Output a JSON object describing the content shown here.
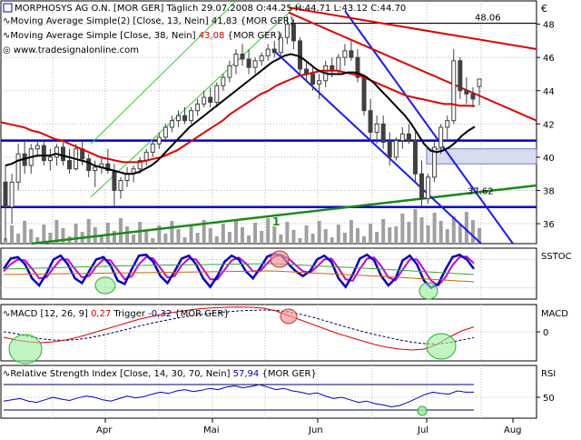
{
  "header": {
    "instrument": "MORPHOSYS AG O.N. [MOR GER] Täglich",
    "date": "29.07.2008",
    "ohlc": "O:44.25 H:44.71 L:43.12 C:44.70",
    "ma1": "Moving Average Simple(2) [Close, 13, Nein] 41,83 {MOR GER}",
    "ma2_prefix": "Moving Average Simple [Close, 38, Nein]",
    "ma2_value": "43,08",
    "ma2_suffix": "{MOR GER}",
    "website": "www.tradesignalonline.com",
    "currency": "€"
  },
  "colors": {
    "candle": "#404040",
    "ma13": "#000000",
    "ma38": "#e00000",
    "support": "#0000cc",
    "channel_down": "#1a1aff",
    "trend_up": "#1a8a1a",
    "channel_up": "#33cc33",
    "resistance_red": "#e00000",
    "volume": "#a0a0a0",
    "stoch_k": "#0000cc",
    "stoch_d": "#cc00cc",
    "macd": "#e00000",
    "trigger": "#000060",
    "rsi": "#0000cc",
    "ellipse_green": "#99ee99",
    "ellipse_red": "#ee9999",
    "grid": "#b8b8b8"
  },
  "chart_data": [
    {
      "type": "candlestick",
      "panel": "price",
      "y_ticks": [
        "36",
        "38",
        "40",
        "42",
        "44",
        "46",
        "48"
      ],
      "ylim": [
        34.8,
        49.4
      ],
      "x_month_labels": [
        "Apr",
        "Mai",
        "Jun",
        "Jul",
        "Aug"
      ],
      "annotations": [
        "48.06",
        "37.62",
        "1"
      ],
      "lines": {
        "support_41": 41.0,
        "support_37": 37.0,
        "resistance_48": 48.06
      },
      "ohlc": [
        [
          38.5,
          39.5,
          35.0,
          37.0
        ],
        [
          37.0,
          39.0,
          36.0,
          38.5
        ],
        [
          38.5,
          40.8,
          38.0,
          40.2
        ],
        [
          40.2,
          41.0,
          39.0,
          39.5
        ],
        [
          39.5,
          40.8,
          39.0,
          40.5
        ],
        [
          40.5,
          41.0,
          40.0,
          40.7
        ],
        [
          40.7,
          41.0,
          39.5,
          39.8
        ],
        [
          39.8,
          40.5,
          39.2,
          40.0
        ],
        [
          40.0,
          40.8,
          39.5,
          40.6
        ],
        [
          40.6,
          40.9,
          39.5,
          39.8
        ],
        [
          39.8,
          40.5,
          39.0,
          39.3
        ],
        [
          39.3,
          40.8,
          39.2,
          40.5
        ],
        [
          40.5,
          41.0,
          39.5,
          39.9
        ],
        [
          39.9,
          40.2,
          38.8,
          39.2
        ],
        [
          39.2,
          39.8,
          38.2,
          39.4
        ],
        [
          39.4,
          40.0,
          39.0,
          39.6
        ],
        [
          39.6,
          40.5,
          39.0,
          39.2
        ],
        [
          39.2,
          39.6,
          37.0,
          38.0
        ],
        [
          38.0,
          38.8,
          37.5,
          38.6
        ],
        [
          38.6,
          39.4,
          38.2,
          39.0
        ],
        [
          39.0,
          39.5,
          38.5,
          39.3
        ],
        [
          39.3,
          40.0,
          39.0,
          39.8
        ],
        [
          39.8,
          40.5,
          39.5,
          40.3
        ],
        [
          40.3,
          41.0,
          40.0,
          40.8
        ],
        [
          40.8,
          41.5,
          40.5,
          41.2
        ],
        [
          41.2,
          42.0,
          40.9,
          41.8
        ],
        [
          41.8,
          42.5,
          41.5,
          42.2
        ],
        [
          42.2,
          42.8,
          41.8,
          42.5
        ],
        [
          42.5,
          43.0,
          42.0,
          42.2
        ],
        [
          42.2,
          43.0,
          42.0,
          42.8
        ],
        [
          42.8,
          43.5,
          42.5,
          43.2
        ],
        [
          43.2,
          44.0,
          43.0,
          43.6
        ],
        [
          43.6,
          44.2,
          43.0,
          43.3
        ],
        [
          43.3,
          44.5,
          43.0,
          44.3
        ],
        [
          44.3,
          45.0,
          44.0,
          44.8
        ],
        [
          44.8,
          45.8,
          44.5,
          45.5
        ],
        [
          45.5,
          46.5,
          45.0,
          46.2
        ],
        [
          46.2,
          46.8,
          45.5,
          45.9
        ],
        [
          45.9,
          46.5,
          45.0,
          45.4
        ],
        [
          45.4,
          46.0,
          45.0,
          45.8
        ],
        [
          45.8,
          46.3,
          45.5,
          46.1
        ],
        [
          46.1,
          46.8,
          45.8,
          46.5
        ],
        [
          46.5,
          47.0,
          46.0,
          46.3
        ],
        [
          46.3,
          47.5,
          46.0,
          47.2
        ],
        [
          47.2,
          48.5,
          46.8,
          48.0
        ],
        [
          48.0,
          48.3,
          46.5,
          47.0
        ],
        [
          47.0,
          47.2,
          45.0,
          45.3
        ],
        [
          45.3,
          45.8,
          44.5,
          45.0
        ],
        [
          45.0,
          45.5,
          44.0,
          44.4
        ],
        [
          44.4,
          45.0,
          43.5,
          44.6
        ],
        [
          44.6,
          45.8,
          44.2,
          45.5
        ],
        [
          45.5,
          46.0,
          44.8,
          45.2
        ],
        [
          45.2,
          46.2,
          45.0,
          46.0
        ],
        [
          46.0,
          46.8,
          45.5,
          46.4
        ],
        [
          46.4,
          47.0,
          45.8,
          46.0
        ],
        [
          46.0,
          46.5,
          44.5,
          44.8
        ],
        [
          44.8,
          45.0,
          42.5,
          42.8
        ],
        [
          42.8,
          43.5,
          41.0,
          41.5
        ],
        [
          41.5,
          42.5,
          40.8,
          42.0
        ],
        [
          42.0,
          42.5,
          40.5,
          40.9
        ],
        [
          40.9,
          41.5,
          39.5,
          40.0
        ],
        [
          40.0,
          41.2,
          39.8,
          41.0
        ],
        [
          41.0,
          41.8,
          40.5,
          41.4
        ],
        [
          41.4,
          42.0,
          40.8,
          41.0
        ],
        [
          41.0,
          41.5,
          38.5,
          39.0
        ],
        [
          39.0,
          39.8,
          37.0,
          37.5
        ],
        [
          37.5,
          39.0,
          37.2,
          38.8
        ],
        [
          38.8,
          41.0,
          38.5,
          40.6
        ],
        [
          40.6,
          42.0,
          40.2,
          41.8
        ],
        [
          41.8,
          42.5,
          41.0,
          42.2
        ],
        [
          42.2,
          46.5,
          42.0,
          45.8
        ],
        [
          45.8,
          46.0,
          43.5,
          44.0
        ],
        [
          44.0,
          44.8,
          43.2,
          43.8
        ],
        [
          43.8,
          44.2,
          43.0,
          43.5
        ],
        [
          44.25,
          44.71,
          43.12,
          44.7
        ]
      ],
      "ma13": [
        39.5,
        39.6,
        39.8,
        39.9,
        40.0,
        40.1,
        40.1,
        40.1,
        40.2,
        40.1,
        40.0,
        39.9,
        39.8,
        39.7,
        39.5,
        39.4,
        39.3,
        39.2,
        39.1,
        39.0,
        39.0,
        39.1,
        39.3,
        39.5,
        39.8,
        40.2,
        40.6,
        41.0,
        41.4,
        41.8,
        42.1,
        42.4,
        42.7,
        43.0,
        43.3,
        43.6,
        43.9,
        44.2,
        44.5,
        44.8,
        45.1,
        45.4,
        45.7,
        45.9,
        46.1,
        46.2,
        46.1,
        45.9,
        45.6,
        45.3,
        45.1,
        45.0,
        45.0,
        45.0,
        45.1,
        45.1,
        45.0,
        44.8,
        44.5,
        44.1,
        43.7,
        43.3,
        42.9,
        42.5,
        42.0,
        41.4,
        40.8,
        40.4,
        40.3,
        40.4,
        40.6,
        40.9,
        41.3,
        41.6,
        41.83
      ],
      "ma38": [
        42.1,
        42.0,
        41.9,
        41.8,
        41.6,
        41.5,
        41.3,
        41.1,
        41.0,
        40.8,
        40.6,
        40.4,
        40.2,
        40.0,
        39.9,
        39.8,
        39.7,
        39.7,
        39.7,
        39.8,
        39.9,
        40.0,
        40.2,
        40.4,
        40.7,
        41.0,
        41.3,
        41.6,
        41.9,
        42.2,
        42.6,
        42.9,
        43.2,
        43.5,
        43.8,
        44.0,
        44.3,
        44.5,
        44.7,
        44.9,
        45.0,
        45.1,
        45.2,
        45.2,
        45.2,
        45.1,
        45.0,
        44.9,
        44.7,
        44.5,
        44.3,
        44.1,
        43.9,
        43.7,
        43.6,
        43.5,
        43.4,
        43.3,
        43.2,
        43.2,
        43.1,
        43.1,
        43.08
      ]
    },
    {
      "type": "line",
      "panel": "stochastic",
      "label": "SSTOC",
      "series": [
        {
          "name": "K",
          "values": [
            60,
            82,
            85,
            70,
            40,
            25,
            50,
            80,
            88,
            70,
            40,
            30,
            55,
            80,
            85,
            68,
            35,
            28,
            60,
            88,
            90,
            75,
            45,
            30,
            55,
            82,
            88,
            70,
            40,
            22,
            45,
            75,
            88,
            80,
            55,
            40,
            62,
            86,
            92,
            88,
            70,
            55,
            45,
            55,
            80,
            88,
            75,
            40,
            22,
            48,
            82,
            90,
            78,
            45,
            25,
            40,
            78,
            88,
            70,
            35,
            20,
            28,
            58,
            85,
            90,
            80,
            60
          ]
        },
        {
          "name": "D",
          "values": [
            55,
            70,
            80,
            78,
            60,
            40,
            42,
            62,
            80,
            80,
            60,
            42,
            45,
            65,
            80,
            78,
            58,
            38,
            45,
            70,
            85,
            82,
            62,
            42,
            45,
            68,
            82,
            80,
            60,
            38,
            38,
            58,
            78,
            84,
            72,
            55,
            55,
            72,
            86,
            89,
            82,
            68,
            55,
            52,
            65,
            80,
            82,
            62,
            38,
            35,
            60,
            82,
            84,
            66,
            42,
            36,
            58,
            80,
            80,
            58,
            35,
            25,
            42,
            68,
            85,
            86,
            72
          ]
        }
      ]
    },
    {
      "type": "line",
      "panel": "macd",
      "title": "MACD [12, 26, 9]",
      "value": "0,27",
      "trigger_label": "Trigger",
      "trigger_value": "-0,32",
      "suffix": "{MOR GER}",
      "y_ticks": [
        "0"
      ],
      "series": [
        {
          "name": "MACD",
          "values": [
            -0.3,
            -0.45,
            -0.55,
            -0.6,
            -0.55,
            -0.45,
            -0.3,
            -0.1,
            0.1,
            0.3,
            0.5,
            0.7,
            0.85,
            1.0,
            1.1,
            1.2,
            1.28,
            1.32,
            1.35,
            1.36,
            1.35,
            1.3,
            1.15,
            0.9,
            0.65,
            0.4,
            0.15,
            -0.1,
            -0.3,
            -0.5,
            -0.7,
            -0.85,
            -0.95,
            -1.0,
            -0.95,
            -0.7,
            -0.3,
            0.05,
            0.27
          ]
        },
        {
          "name": "Trigger",
          "values": [
            0.0,
            -0.1,
            -0.25,
            -0.38,
            -0.45,
            -0.47,
            -0.42,
            -0.32,
            -0.18,
            -0.02,
            0.15,
            0.32,
            0.48,
            0.62,
            0.75,
            0.86,
            0.96,
            1.04,
            1.1,
            1.15,
            1.18,
            1.2,
            1.18,
            1.1,
            0.96,
            0.8,
            0.6,
            0.4,
            0.2,
            0.02,
            -0.15,
            -0.3,
            -0.45,
            -0.57,
            -0.65,
            -0.68,
            -0.6,
            -0.45,
            -0.32
          ]
        }
      ]
    },
    {
      "type": "line",
      "panel": "rsi",
      "title": "Relative Strength Index [Close, 14, 30, 70, Nein]",
      "value": "57,94",
      "suffix": "{MOR GER}",
      "label": "RSI",
      "y_ticks": [
        "50"
      ],
      "levels": [
        30,
        70
      ],
      "series": [
        {
          "name": "RSI",
          "values": [
            44,
            46,
            48,
            44,
            42,
            46,
            50,
            47,
            45,
            49,
            52,
            50,
            46,
            44,
            48,
            52,
            49,
            51,
            55,
            58,
            56,
            60,
            62,
            59,
            61,
            64,
            62,
            66,
            68,
            65,
            67,
            70,
            66,
            62,
            64,
            60,
            58,
            55,
            57,
            52,
            48,
            50,
            46,
            42,
            44,
            40,
            38,
            35,
            37,
            42,
            48,
            54,
            58,
            56,
            55,
            60,
            58,
            57.94
          ]
        }
      ]
    }
  ]
}
